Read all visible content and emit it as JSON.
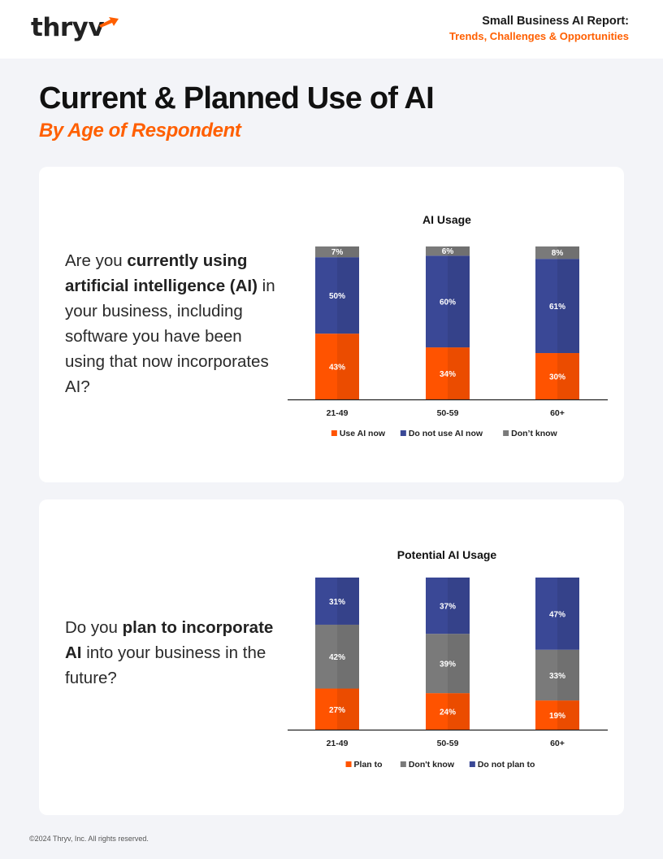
{
  "header": {
    "logo_text": "thryv",
    "report_title": "Small Business AI Report:",
    "report_subtitle": "Trends, Challenges & Opportunities"
  },
  "page": {
    "title": "Current & Planned Use of AI",
    "subtitle": "By Age of Respondent"
  },
  "questions": [
    {
      "pre": "Are you ",
      "bold": "currently using artificial intelligence (AI)",
      "post": " in your business, including software you have been using that now incorporates AI?"
    },
    {
      "pre": "Do you ",
      "bold": "plan to incorporate AI",
      "post": " into your business in the future?"
    }
  ],
  "footer": {
    "copyright": "©2024 Thryv, Inc. All rights reserved."
  },
  "colors": {
    "orange": "#ff5300",
    "blue": "#3a4896",
    "gray": "#7a7a7a",
    "accent": "#ff5f00"
  },
  "chart_data": [
    {
      "type": "bar",
      "stacked": true,
      "title": "AI Usage",
      "categories": [
        "21-49",
        "50-59",
        "60+"
      ],
      "series": [
        {
          "name": "Use AI now",
          "color": "#ff5300",
          "values": [
            43,
            34,
            30
          ]
        },
        {
          "name": "Do not use AI now",
          "color": "#3a4896",
          "values": [
            50,
            60,
            61
          ]
        },
        {
          "name": "Don’t know",
          "color": "#7a7a7a",
          "values": [
            7,
            6,
            8
          ]
        }
      ],
      "ylim": [
        0,
        100
      ]
    },
    {
      "type": "bar",
      "stacked": true,
      "title": "Potential AI Usage",
      "categories": [
        "21-49",
        "50-59",
        "60+"
      ],
      "series": [
        {
          "name": "Plan to",
          "color": "#ff5300",
          "values": [
            27,
            24,
            19
          ]
        },
        {
          "name": "Don't know",
          "color": "#7a7a7a",
          "values": [
            42,
            39,
            33
          ]
        },
        {
          "name": "Do not plan to",
          "color": "#3a4896",
          "values": [
            31,
            37,
            47
          ]
        }
      ],
      "ylim": [
        0,
        100
      ]
    }
  ]
}
